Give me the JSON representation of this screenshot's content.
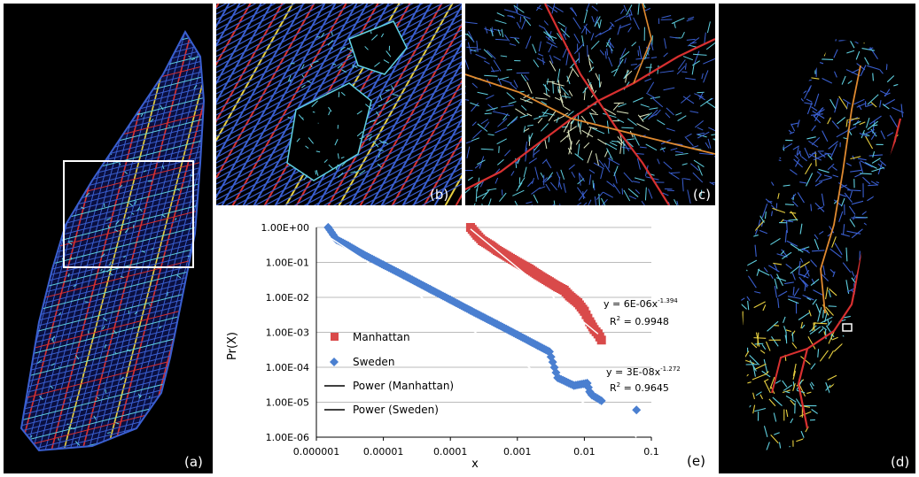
{
  "panels": {
    "a": {
      "label": "(a)"
    },
    "b": {
      "label": "(b)"
    },
    "c": {
      "label": "(c)"
    },
    "d": {
      "label": "(d)"
    },
    "e": {
      "label": "(e)"
    }
  },
  "colors": {
    "background": "#000000",
    "manhattan": "#d94a4a",
    "sweden": "#4a7fd0",
    "trendline": "#ffffff",
    "road_blue": "#3a5fd0",
    "road_cyan": "#5fd0e0",
    "road_yellow": "#e8d040",
    "road_red": "#d83030",
    "road_orange": "#e08a30"
  },
  "chart_data": {
    "type": "scatter",
    "title": "",
    "xlabel": "x",
    "ylabel": "Pr(X)",
    "xscale": "log",
    "yscale": "log",
    "xlim": [
      1e-06,
      0.1
    ],
    "ylim": [
      1e-06,
      1
    ],
    "grid": "horizontal",
    "x_ticks": [
      "0.000001",
      "0.00001",
      "0.0001",
      "0.001",
      "0.01",
      "0.1"
    ],
    "y_ticks": [
      "1.00E-06",
      "1.00E-05",
      "1.00E-04",
      "1.00E-03",
      "1.00E-02",
      "1.00E-01",
      "1.00E+00"
    ],
    "legend_position": "left-inside",
    "legend": [
      "Manhattan",
      "Sweden",
      "Power (Manhattan)",
      "Power (Sweden)"
    ],
    "series": [
      {
        "name": "Manhattan",
        "marker": "square",
        "points": [
          [
            0.0002,
            1.0
          ],
          [
            0.00025,
            0.6
          ],
          [
            0.0003,
            0.42
          ],
          [
            0.0004,
            0.3
          ],
          [
            0.0005,
            0.22
          ],
          [
            0.0007,
            0.15
          ],
          [
            0.001,
            0.1
          ],
          [
            0.0015,
            0.065
          ],
          [
            0.002,
            0.045
          ],
          [
            0.003,
            0.028
          ],
          [
            0.004,
            0.02
          ],
          [
            0.005,
            0.016
          ],
          [
            0.006,
            0.011
          ],
          [
            0.008,
            0.007
          ],
          [
            0.01,
            0.004
          ],
          [
            0.012,
            0.002
          ],
          [
            0.014,
            0.0012
          ],
          [
            0.016,
            0.0009
          ],
          [
            0.018,
            0.0006
          ]
        ]
      },
      {
        "name": "Sweden",
        "marker": "diamond",
        "points": [
          [
            1.5e-06,
            1.0
          ],
          [
            2e-06,
            0.45
          ],
          [
            3e-06,
            0.3
          ],
          [
            5e-06,
            0.17
          ],
          [
            1e-05,
            0.085
          ],
          [
            2e-05,
            0.043
          ],
          [
            5e-05,
            0.017
          ],
          [
            0.0001,
            0.0085
          ],
          [
            0.0002,
            0.0042
          ],
          [
            0.0005,
            0.0017
          ],
          [
            0.001,
            0.00085
          ],
          [
            0.002,
            0.00042
          ],
          [
            0.003,
            0.00028
          ],
          [
            0.004,
            5e-05
          ],
          [
            0.007,
            3e-05
          ],
          [
            0.011,
            3.5e-05
          ],
          [
            0.012,
            2e-05
          ],
          [
            0.013,
            1.6e-05
          ],
          [
            0.018,
            1.1e-05
          ],
          [
            0.06,
            6e-06
          ]
        ]
      }
    ],
    "trendlines": [
      {
        "name": "Power (Manhattan)",
        "from": [
          0.0002,
          0.9
        ],
        "to": [
          0.016,
          0.0009
        ]
      },
      {
        "name": "Power (Sweden)",
        "from": [
          1.5e-06,
          0.55
        ],
        "to": [
          0.06,
          1e-06
        ]
      }
    ],
    "annotations": {
      "manhattan_eq": {
        "base": "y = 6E-06x",
        "exp": "-1.394"
      },
      "manhattan_r2": {
        "base": "R",
        "sup": "2",
        "rest": " = 0.9948"
      },
      "sweden_eq": {
        "base": "y = 3E-08x",
        "exp": "-1.272"
      },
      "sweden_r2": {
        "base": "R",
        "sup": "2",
        "rest": " = 0.9645"
      }
    }
  }
}
